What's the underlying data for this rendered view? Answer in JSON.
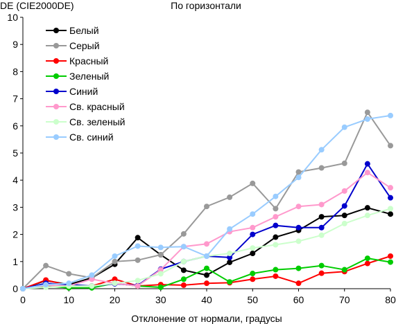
{
  "chart_data": {
    "type": "line",
    "title": "По горизонтали",
    "ylabel": "DE (CIE2000DE)",
    "xlabel": "Отклонение от нормали, градусы",
    "xlim": [
      0,
      80
    ],
    "ylim": [
      0,
      10
    ],
    "x_ticks": [
      0,
      10,
      20,
      30,
      40,
      50,
      60,
      70,
      80
    ],
    "y_ticks": [
      0,
      1,
      2,
      3,
      4,
      5,
      6,
      7,
      8,
      9,
      10
    ],
    "grid": false,
    "legend_position": "top-left",
    "x": [
      0,
      5,
      10,
      15,
      20,
      25,
      30,
      35,
      40,
      45,
      50,
      55,
      60,
      65,
      70,
      75,
      80
    ],
    "series": [
      {
        "name": "Белый",
        "color": "#000000",
        "values": [
          0,
          0.3,
          0.15,
          0.4,
          0.9,
          1.88,
          1.25,
          0.68,
          0.5,
          0.97,
          1.3,
          1.9,
          2.15,
          2.65,
          2.7,
          2.98,
          2.75
        ]
      },
      {
        "name": "Серый",
        "color": "#999999",
        "values": [
          0,
          0.85,
          0.55,
          0.4,
          1.0,
          1.05,
          1.25,
          2.02,
          3.03,
          3.37,
          3.88,
          2.95,
          4.3,
          4.45,
          4.62,
          6.5,
          5.27
        ]
      },
      {
        "name": "Красный",
        "color": "#ff0000",
        "values": [
          0,
          0.32,
          0.12,
          0.1,
          0.35,
          0.1,
          0.15,
          0.13,
          0.2,
          0.22,
          0.35,
          0.46,
          0.2,
          0.57,
          0.63,
          0.93,
          1.2
        ]
      },
      {
        "name": "Зеленый",
        "color": "#00cc00",
        "values": [
          0,
          0.1,
          0.03,
          0.03,
          0.2,
          0.1,
          0.05,
          0.35,
          0.75,
          0.25,
          0.56,
          0.7,
          0.75,
          0.85,
          0.7,
          1.12,
          0.98
        ]
      },
      {
        "name": "Синий",
        "color": "#0000cc",
        "values": [
          0,
          0.2,
          0.15,
          0.1,
          0.18,
          0.12,
          0.72,
          1.0,
          1.2,
          1.15,
          2.0,
          2.33,
          2.25,
          2.25,
          3.05,
          4.6,
          3.35
        ]
      },
      {
        "name": "Св. красный",
        "color": "#ff99cc",
        "values": [
          0,
          0.12,
          0.1,
          0.35,
          0.2,
          0.1,
          0.7,
          1.55,
          1.65,
          2.1,
          2.25,
          2.65,
          3.03,
          3.1,
          3.6,
          4.28,
          3.72
        ]
      },
      {
        "name": "Св. зеленый",
        "color": "#ccffcc",
        "values": [
          0,
          0.05,
          0.1,
          0.1,
          0.2,
          0.3,
          0.55,
          1.0,
          1.2,
          1.3,
          1.5,
          1.62,
          1.75,
          1.97,
          2.4,
          2.7,
          2.95
        ]
      },
      {
        "name": "Св. синий",
        "color": "#99ccff",
        "values": [
          0,
          0.15,
          0.2,
          0.5,
          1.2,
          1.57,
          1.52,
          1.55,
          1.2,
          2.2,
          2.75,
          3.4,
          4.1,
          5.12,
          5.95,
          6.25,
          6.38
        ]
      }
    ]
  }
}
